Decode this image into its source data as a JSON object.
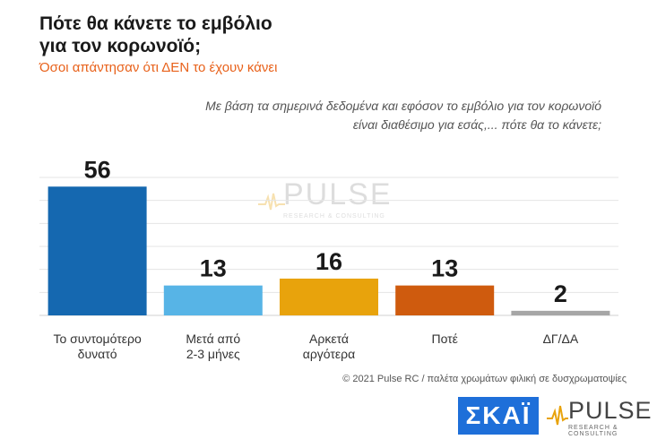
{
  "title": {
    "line1": "Πότε θα κάνετε το εμβόλιο",
    "line2": "για τον κορωνοϊό;"
  },
  "subtitle": "Όσοι απάντησαν ότι ΔΕΝ το έχουν κάνει",
  "question": "Με βάση τα σημερινά δεδομένα και εφόσον το εμβόλιο για τον κορωνοϊό είναι διαθέσιμο για εσάς,... πότε θα το κάνετε;",
  "footer_note": "© 2021 Pulse RC  /  παλέτα χρωμάτων φιλική σε δυσχρωματοψίες",
  "logos": {
    "skai": "ΣΚΑΪ",
    "pulse": "PULSE",
    "pulse_tagline": "RESEARCH & CONSULTING",
    "watermark": "PULSE",
    "watermark_tagline": "RESEARCH & CONSULTING"
  },
  "chart_data": {
    "type": "bar",
    "categories": [
      [
        "Το συντομότερο",
        "δυνατό"
      ],
      [
        "Μετά από",
        "2-3 μήνες"
      ],
      [
        "Αρκετά",
        "αργότερα"
      ],
      [
        "Ποτέ"
      ],
      [
        "ΔΓ/ΔΑ"
      ]
    ],
    "values": [
      56,
      13,
      16,
      13,
      2
    ],
    "colors": [
      "#1568b0",
      "#57b4e6",
      "#e8a30c",
      "#cf5b0e",
      "#a6a6a6"
    ],
    "ylim": [
      0,
      60
    ],
    "grid": true,
    "data_labels": true
  }
}
